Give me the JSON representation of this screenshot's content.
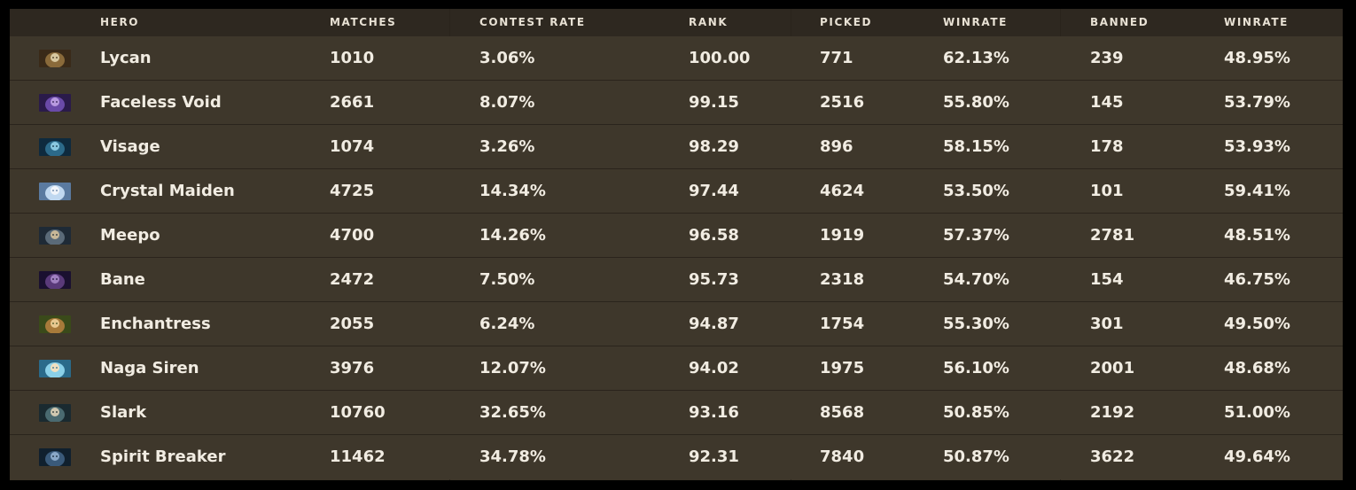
{
  "header": {
    "hero": "HERO",
    "matches": "MATCHES",
    "contest_rate": "CONTEST RATE",
    "rank": "RANK",
    "picked": "PICKED",
    "picked_winrate": "WINRATE",
    "banned": "BANNED",
    "banned_winrate": "WINRATE"
  },
  "rows": [
    {
      "hero": "Lycan",
      "icon": "lycan-portrait-icon",
      "matches": "1010",
      "contest_rate": "3.06%",
      "rank": "100.00",
      "picked": "771",
      "picked_winrate": "62.13%",
      "banned": "239",
      "banned_winrate": "48.95%"
    },
    {
      "hero": "Faceless Void",
      "icon": "faceless-void-portrait-icon",
      "matches": "2661",
      "contest_rate": "8.07%",
      "rank": "99.15",
      "picked": "2516",
      "picked_winrate": "55.80%",
      "banned": "145",
      "banned_winrate": "53.79%"
    },
    {
      "hero": "Visage",
      "icon": "visage-portrait-icon",
      "matches": "1074",
      "contest_rate": "3.26%",
      "rank": "98.29",
      "picked": "896",
      "picked_winrate": "58.15%",
      "banned": "178",
      "banned_winrate": "53.93%"
    },
    {
      "hero": "Crystal Maiden",
      "icon": "crystal-maiden-portrait-icon",
      "matches": "4725",
      "contest_rate": "14.34%",
      "rank": "97.44",
      "picked": "4624",
      "picked_winrate": "53.50%",
      "banned": "101",
      "banned_winrate": "59.41%"
    },
    {
      "hero": "Meepo",
      "icon": "meepo-portrait-icon",
      "matches": "4700",
      "contest_rate": "14.26%",
      "rank": "96.58",
      "picked": "1919",
      "picked_winrate": "57.37%",
      "banned": "2781",
      "banned_winrate": "48.51%"
    },
    {
      "hero": "Bane",
      "icon": "bane-portrait-icon",
      "matches": "2472",
      "contest_rate": "7.50%",
      "rank": "95.73",
      "picked": "2318",
      "picked_winrate": "54.70%",
      "banned": "154",
      "banned_winrate": "46.75%"
    },
    {
      "hero": "Enchantress",
      "icon": "enchantress-portrait-icon",
      "matches": "2055",
      "contest_rate": "6.24%",
      "rank": "94.87",
      "picked": "1754",
      "picked_winrate": "55.30%",
      "banned": "301",
      "banned_winrate": "49.50%"
    },
    {
      "hero": "Naga Siren",
      "icon": "naga-siren-portrait-icon",
      "matches": "3976",
      "contest_rate": "12.07%",
      "rank": "94.02",
      "picked": "1975",
      "picked_winrate": "56.10%",
      "banned": "2001",
      "banned_winrate": "48.68%"
    },
    {
      "hero": "Slark",
      "icon": "slark-portrait-icon",
      "matches": "10760",
      "contest_rate": "32.65%",
      "rank": "93.16",
      "picked": "8568",
      "picked_winrate": "50.85%",
      "banned": "2192",
      "banned_winrate": "51.00%"
    },
    {
      "hero": "Spirit Breaker",
      "icon": "spirit-breaker-portrait-icon",
      "matches": "11462",
      "contest_rate": "34.78%",
      "rank": "92.31",
      "picked": "7840",
      "picked_winrate": "50.87%",
      "banned": "3622",
      "banned_winrate": "49.64%"
    }
  ],
  "colors": {
    "panel_bg": "#3d3529",
    "header_bg": "#2e2820",
    "text": "#f1ece2",
    "divider": "#2a241c",
    "outer_bg": "#000000"
  }
}
